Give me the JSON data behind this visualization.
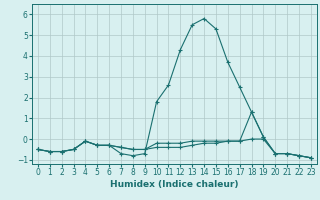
{
  "xlabel": "Humidex (Indice chaleur)",
  "x": [
    0,
    1,
    2,
    3,
    4,
    5,
    6,
    7,
    8,
    9,
    10,
    11,
    12,
    13,
    14,
    15,
    16,
    17,
    18,
    19,
    20,
    21,
    22,
    23
  ],
  "line1": [
    -0.5,
    -0.6,
    -0.6,
    -0.5,
    -0.1,
    -0.3,
    -0.3,
    -0.7,
    -0.8,
    -0.7,
    1.8,
    2.6,
    4.3,
    5.5,
    5.8,
    5.3,
    3.7,
    2.5,
    1.3,
    0.1,
    -0.7,
    -0.7,
    -0.8,
    -0.9
  ],
  "line2": [
    -0.5,
    -0.6,
    -0.6,
    -0.5,
    -0.1,
    -0.3,
    -0.3,
    -0.4,
    -0.5,
    -0.5,
    -0.2,
    -0.2,
    -0.2,
    -0.1,
    -0.1,
    -0.1,
    -0.1,
    -0.1,
    0.0,
    0.0,
    -0.7,
    -0.7,
    -0.8,
    -0.9
  ],
  "line3": [
    -0.5,
    -0.6,
    -0.6,
    -0.5,
    -0.1,
    -0.3,
    -0.3,
    -0.4,
    -0.5,
    -0.5,
    -0.4,
    -0.4,
    -0.4,
    -0.3,
    -0.2,
    -0.2,
    -0.1,
    -0.1,
    1.3,
    0.1,
    -0.7,
    -0.7,
    -0.8,
    -0.9
  ],
  "line_color": "#1a7070",
  "bg_color": "#d8f0f0",
  "grid_color": "#b0c8c8",
  "ylim": [
    -1.2,
    6.5
  ],
  "yticks": [
    -1,
    0,
    1,
    2,
    3,
    4,
    5,
    6
  ],
  "xticks": [
    0,
    1,
    2,
    3,
    4,
    5,
    6,
    7,
    8,
    9,
    10,
    11,
    12,
    13,
    14,
    15,
    16,
    17,
    18,
    19,
    20,
    21,
    22,
    23
  ],
  "marker": "+"
}
